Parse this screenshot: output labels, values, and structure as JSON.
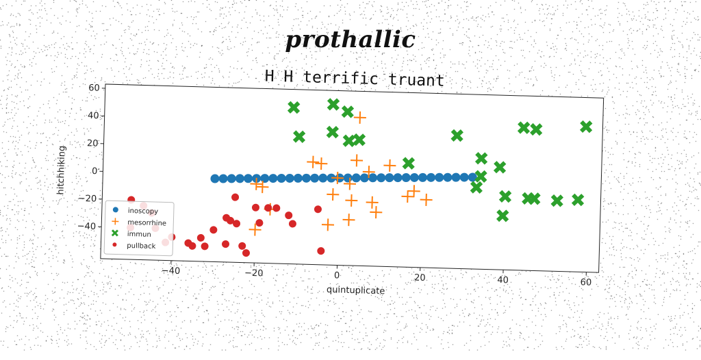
{
  "page": {
    "heading": "prothallic"
  },
  "colors": {
    "inoscopy": "#1f77b4",
    "mesorrhine": "#ff7f0e",
    "immun": "#2ca02c",
    "pullback": "#d62728"
  },
  "chart_data": {
    "type": "scatter",
    "title": "H H terrific truant",
    "xlabel": "quintuplicate",
    "ylabel": "hitchhiking",
    "xlim": [
      -57,
      63
    ],
    "ylim": [
      -63,
      63
    ],
    "xticks": [
      -40,
      -20,
      0,
      20,
      40,
      60
    ],
    "yticks": [
      -40,
      -20,
      0,
      20,
      40,
      60
    ],
    "grid": false,
    "legend_position": "lower-left",
    "series": [
      {
        "name": "inoscopy",
        "marker": "circle",
        "x": [
          -30.0,
          -28.0,
          -26.0,
          -24.0,
          -22.0,
          -20.0,
          -18.0,
          -16.0,
          -14.0,
          -12.0,
          -10.0,
          -8.0,
          -6.0,
          -4.0,
          -2.0,
          0.0,
          2.0,
          4.0,
          6.0,
          8.0,
          10.0,
          12.0,
          14.0,
          16.0,
          18.0,
          20.0,
          22.0,
          24.0,
          26.0,
          28.0,
          30.0,
          32.0
        ],
        "y": [
          -3.0,
          -2.8,
          -2.6,
          -2.4,
          -2.2,
          -2.0,
          -1.8,
          -1.6,
          -1.4,
          -1.2,
          -1.0,
          -0.8,
          -0.6,
          -0.4,
          -0.2,
          0.0,
          0.2,
          0.4,
          0.6,
          0.8,
          1.0,
          1.2,
          1.4,
          1.6,
          1.8,
          2.0,
          2.2,
          2.4,
          2.6,
          2.8,
          3.0,
          3.2
        ]
      },
      {
        "name": "mesorrhine",
        "marker": "plus",
        "x": [
          4.5,
          -6.5,
          -4.5,
          4,
          7,
          12,
          -0.5,
          2.5,
          -1.5,
          16.5,
          18,
          21,
          3,
          8,
          9,
          -20,
          -18.5,
          -16.5,
          -20,
          -2.5,
          2.5
        ],
        "y": [
          44,
          11,
          10,
          13,
          5,
          10,
          0,
          -4,
          -12,
          -12,
          -8,
          -14,
          -16,
          -17,
          -24,
          -6,
          -8,
          -24,
          -39,
          -34,
          -30
        ]
      },
      {
        "name": "immun",
        "marker": "x",
        "x": [
          -11.5,
          -2,
          1.5,
          -10,
          -2,
          2,
          4.5,
          16.5,
          28,
          34,
          38.5,
          34,
          33,
          44,
          47,
          59,
          40,
          45.5,
          47,
          52.5,
          57.5,
          39.5
        ],
        "y": [
          50,
          53,
          48,
          29,
          33,
          27,
          28,
          12,
          33,
          17,
          11,
          4,
          -4,
          40,
          39,
          42,
          -10,
          -11,
          -11,
          -12,
          -11,
          -24
        ]
      },
      {
        "name": "pullback",
        "marker": "dot",
        "x": [
          -50,
          -47,
          -45,
          -50,
          -44,
          -41.5,
          -40,
          -36,
          -35,
          -33,
          -32,
          -30,
          -27,
          -26,
          -25,
          -24.5,
          -23,
          -22,
          -20,
          -17,
          -19,
          -15,
          -12,
          -11,
          -5,
          -4,
          -27
        ],
        "y": [
          -20,
          -24,
          -29,
          -40,
          -40,
          -50,
          -46,
          -50,
          -52,
          -46,
          -52,
          -40,
          -31,
          -33,
          -16,
          -35,
          -51,
          -56,
          -23,
          -23,
          -34,
          -23,
          -28,
          -34,
          -23,
          -53,
          -50
        ]
      }
    ]
  }
}
